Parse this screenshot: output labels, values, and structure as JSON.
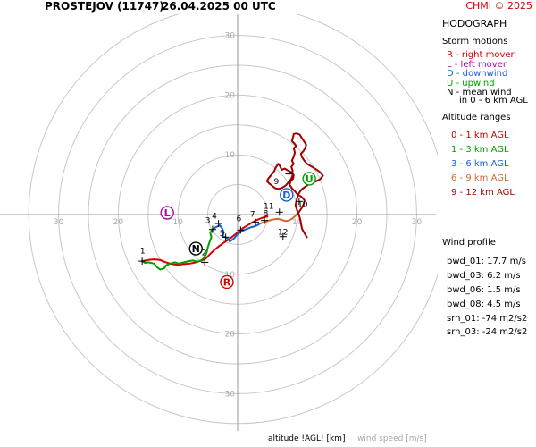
{
  "header": {
    "station": "PROSTEJOV (11747)",
    "datetime": "26.04.2025 00 UTC",
    "copyright": "CHMI © 2025"
  },
  "panel": {
    "title": "HODOGRAPH",
    "storm_motions_title": "Storm motions",
    "storm_motions": [
      {
        "text": "R - right mover",
        "color": "#d40000"
      },
      {
        "text": "L - left mover",
        "color": "#b000b0"
      },
      {
        "text": "D - downwind",
        "color": "#1560d8"
      },
      {
        "text": "U - upwind",
        "color": "#00a000"
      },
      {
        "text": "N - mean wind",
        "color": "#000000"
      }
    ],
    "mean_wind_note": "in 0 - 6 km AGL",
    "altitude_title": "Altitude ranges",
    "altitude_ranges": [
      {
        "text": "0 - 1 km AGL",
        "color": "#d40000"
      },
      {
        "text": "1 - 3 km AGL",
        "color": "#00a000"
      },
      {
        "text": "3 - 6 km AGL",
        "color": "#1560d8"
      },
      {
        "text": "6 - 9 km AGL",
        "color": "#d06a30"
      },
      {
        "text": "9 - 12 km AGL",
        "color": "#a00000"
      }
    ],
    "wind_profile_title": "Wind profile",
    "wind_profile": [
      "bwd_01: 17.7 m/s",
      "bwd_03: 6.2 m/s",
      "bwd_06: 1.5 m/s",
      "bwd_08: 4.5 m/s",
      "srh_01: -74 m2/s2",
      "srh_03: -24 m2/s2"
    ]
  },
  "footer": {
    "altitude_label": "altitude !AGL! [km]",
    "speed_label": "wind speed [m/s]"
  },
  "chart_data": {
    "type": "line",
    "rings": [
      5,
      10,
      15,
      20,
      25,
      30,
      35
    ],
    "ring_labels": [
      10,
      20,
      30
    ],
    "x_tick_labels": [
      {
        "v": -30,
        "t": "30"
      },
      {
        "v": -20,
        "t": "20"
      },
      {
        "v": -10,
        "t": "10"
      },
      {
        "v": 10,
        "t": "10"
      },
      {
        "v": 20,
        "t": "20"
      },
      {
        "v": 30,
        "t": "30"
      }
    ],
    "y_tick_labels": [
      {
        "v": 30,
        "t": "30"
      },
      {
        "v": 20,
        "t": "20"
      },
      {
        "v": 10,
        "t": "10"
      },
      {
        "v": -10,
        "t": "10"
      },
      {
        "v": -20,
        "t": "20"
      },
      {
        "v": -30,
        "t": "30"
      }
    ],
    "segments": [
      {
        "range": "0-1 km",
        "color": "#d40000",
        "points": [
          [
            -16,
            -7.8
          ],
          [
            -15,
            -7.6
          ],
          [
            -14,
            -7.5
          ],
          [
            -13,
            -7.6
          ],
          [
            -12,
            -8
          ],
          [
            -11,
            -8.3
          ],
          [
            -10,
            -8.4
          ],
          [
            -9,
            -8.3
          ],
          [
            -8,
            -8.2
          ],
          [
            -7,
            -8.0
          ],
          [
            -6,
            -7.7
          ],
          [
            -5.5,
            -7.5
          ],
          [
            -5,
            -7.0
          ],
          [
            -4,
            -6.0
          ],
          [
            -3,
            -5.2
          ],
          [
            -2,
            -4.5
          ],
          [
            -1,
            -3.8
          ],
          [
            0,
            -3.0
          ],
          [
            1,
            -2.2
          ],
          [
            2,
            -1.6
          ],
          [
            3,
            -1.0
          ],
          [
            4,
            -0.6
          ],
          [
            5,
            -0.3
          ]
        ]
      },
      {
        "range": "1-3 km",
        "color": "#00a000",
        "points": [
          [
            -16,
            -7.8
          ],
          [
            -15.5,
            -8.1
          ],
          [
            -15,
            -8.0
          ],
          [
            -14,
            -8.2
          ],
          [
            -13.5,
            -8.8
          ],
          [
            -13,
            -9.2
          ],
          [
            -12.3,
            -9.0
          ],
          [
            -12,
            -8.5
          ],
          [
            -11.3,
            -8.2
          ],
          [
            -10.5,
            -8.0
          ],
          [
            -9.8,
            -8.2
          ],
          [
            -9,
            -8.0
          ],
          [
            -8.2,
            -7.8
          ],
          [
            -7.5,
            -7.7
          ],
          [
            -6.7,
            -7.9
          ],
          [
            -6,
            -7.6
          ],
          [
            -5.6,
            -7.2
          ],
          [
            -5.2,
            -6.4
          ],
          [
            -5.0,
            -5.5
          ],
          [
            -4.7,
            -4.6
          ],
          [
            -4.4,
            -3.8
          ],
          [
            -4.6,
            -3.0
          ],
          [
            -4.2,
            -2.5
          ]
        ]
      },
      {
        "range": "3-6 km",
        "color": "#1560d8",
        "points": [
          [
            -4.2,
            -2.5
          ],
          [
            -3.8,
            -2.2
          ],
          [
            -3.4,
            -2.0
          ],
          [
            -3.0,
            -1.8
          ],
          [
            -2.6,
            -2.3
          ],
          [
            -2.3,
            -3.0
          ],
          [
            -2.6,
            -3.6
          ],
          [
            -2.0,
            -3.8
          ],
          [
            -1.6,
            -4.1
          ],
          [
            -1.3,
            -4.5
          ],
          [
            -1.0,
            -4.3
          ],
          [
            -0.6,
            -4.0
          ],
          [
            -0.2,
            -3.5
          ],
          [
            0.4,
            -3.0
          ],
          [
            0.9,
            -2.7
          ],
          [
            1.3,
            -2.5
          ],
          [
            1.8,
            -2.3
          ],
          [
            2.3,
            -2.1
          ],
          [
            2.8,
            -2.0
          ],
          [
            3.3,
            -1.8
          ],
          [
            3.8,
            -1.5
          ]
        ]
      },
      {
        "range": "6-9 km",
        "color": "#d06a30",
        "points": [
          [
            3.8,
            -1.5
          ],
          [
            4.4,
            -1.3
          ],
          [
            5.0,
            -1.1
          ],
          [
            5.6,
            -0.9
          ],
          [
            6.2,
            -0.8
          ],
          [
            6.8,
            -0.7
          ],
          [
            7.4,
            -0.9
          ],
          [
            8.0,
            -1.1
          ],
          [
            8.6,
            -1.0
          ],
          [
            9.1,
            -0.7
          ],
          [
            9.6,
            -0.3
          ],
          [
            10.0,
            0.1
          ]
        ]
      },
      {
        "range": "9-12 km",
        "color": "#a00000",
        "points": [
          [
            10.0,
            0.1
          ],
          [
            10.4,
            0.6
          ],
          [
            10.8,
            1.2
          ],
          [
            11.1,
            1.8
          ],
          [
            11.2,
            2.4
          ],
          [
            10.9,
            2.8
          ],
          [
            10.5,
            3.1
          ],
          [
            10.0,
            3.4
          ],
          [
            9.6,
            3.9
          ],
          [
            9.1,
            4.4
          ],
          [
            8.7,
            5.0
          ],
          [
            8.9,
            5.6
          ],
          [
            9.3,
            6.0
          ],
          [
            9.4,
            6.6
          ],
          [
            9.0,
            7.1
          ],
          [
            8.4,
            7.4
          ],
          [
            7.9,
            7.7
          ],
          [
            7.4,
            7.5
          ],
          [
            7.1,
            8.1
          ],
          [
            6.8,
            8.5
          ],
          [
            6.4,
            7.9
          ],
          [
            6.1,
            7.2
          ],
          [
            5.7,
            6.7
          ],
          [
            5.2,
            6.1
          ],
          [
            4.9,
            5.6
          ],
          [
            5.3,
            5.2
          ],
          [
            5.8,
            4.8
          ],
          [
            6.3,
            4.4
          ],
          [
            6.9,
            4.3
          ],
          [
            7.5,
            4.5
          ],
          [
            8.1,
            4.9
          ],
          [
            8.6,
            5.5
          ],
          [
            9.0,
            6.0
          ],
          [
            9.2,
            6.6
          ],
          [
            9.2,
            7.4
          ],
          [
            9.0,
            8.0
          ],
          [
            9.4,
            8.5
          ],
          [
            9.1,
            9.0
          ],
          [
            9.4,
            9.7
          ],
          [
            9.6,
            10.4
          ],
          [
            9.4,
            11.1
          ],
          [
            9.8,
            11.5
          ],
          [
            9.5,
            11.9
          ],
          [
            9.1,
            12.3
          ],
          [
            9.3,
            13.0
          ],
          [
            9.4,
            13.5
          ],
          [
            9.9,
            13.6
          ],
          [
            10.4,
            13.4
          ],
          [
            10.7,
            12.9
          ],
          [
            11.1,
            12.3
          ],
          [
            11.5,
            11.7
          ],
          [
            11.3,
            11.1
          ],
          [
            11.0,
            10.6
          ],
          [
            10.6,
            10.2
          ],
          [
            10.8,
            9.6
          ],
          [
            11.2,
            9.0
          ],
          [
            11.6,
            8.5
          ],
          [
            12.1,
            8.2
          ],
          [
            12.6,
            7.9
          ],
          [
            13.1,
            7.6
          ],
          [
            13.7,
            7.2
          ],
          [
            14.0,
            6.9
          ],
          [
            14.3,
            6.5
          ],
          [
            13.8,
            5.9
          ],
          [
            13.0,
            5.5
          ],
          [
            12.1,
            5.2
          ],
          [
            11.4,
            4.7
          ],
          [
            10.7,
            4.2
          ],
          [
            10.1,
            3.3
          ],
          [
            9.9,
            2.4
          ],
          [
            9.7,
            1.6
          ],
          [
            9.9,
            0.9
          ],
          [
            10.2,
            0.2
          ],
          [
            10.4,
            -0.5
          ],
          [
            10.6,
            -1.4
          ],
          [
            10.8,
            -2.4
          ],
          [
            11.3,
            -3.3
          ],
          [
            11.6,
            -3.8
          ]
        ]
      }
    ],
    "altitude_marks": [
      {
        "label": "1",
        "u": -16,
        "v": -7.8,
        "lx": -15.9,
        "ly": -6.5
      },
      {
        "label": "2",
        "u": -5.5,
        "v": -8.0,
        "lx": -5.6,
        "ly": -6.8
      },
      {
        "label": "3",
        "u": -4.2,
        "v": -2.5,
        "lx": -5.0,
        "ly": -1.4
      },
      {
        "label": "4",
        "u": -3.2,
        "v": -1.5,
        "lx": -3.9,
        "ly": -0.7
      },
      {
        "label": "5",
        "u": -2.0,
        "v": -3.8,
        "lx": -2.6,
        "ly": -3.6
      },
      {
        "label": "6",
        "u": 0.5,
        "v": -2.6,
        "lx": 0.2,
        "ly": -1.1
      },
      {
        "label": "7",
        "u": 3.0,
        "v": -1.3,
        "lx": 2.5,
        "ly": -0.4
      },
      {
        "label": "8",
        "u": 4.5,
        "v": -1.0,
        "lx": 4.7,
        "ly": -0.2
      },
      {
        "label": "9",
        "u": 8.6,
        "v": 6.8,
        "lx": 6.5,
        "ly": 5.1
      },
      {
        "label": "10",
        "u": 10.3,
        "v": 2.2,
        "lx": 10.9,
        "ly": 1.3
      },
      {
        "label": "11",
        "u": 7.0,
        "v": 0.4,
        "lx": 5.2,
        "ly": 1.0
      },
      {
        "label": "12",
        "u": 7.6,
        "v": -3.7,
        "lx": 7.6,
        "ly": -3.4
      }
    ],
    "storm_markers": [
      {
        "letter": "R",
        "u": -1.8,
        "v": -11.3,
        "color": "#d40000"
      },
      {
        "letter": "L",
        "u": -11.8,
        "v": 0.3,
        "color": "#b000b0"
      },
      {
        "letter": "D",
        "u": 8.2,
        "v": 3.3,
        "color": "#1560d8"
      },
      {
        "letter": "U",
        "u": 12.0,
        "v": 6.0,
        "color": "#00a000"
      },
      {
        "letter": "N",
        "u": -7.0,
        "v": -5.7,
        "color": "#000000"
      }
    ]
  }
}
